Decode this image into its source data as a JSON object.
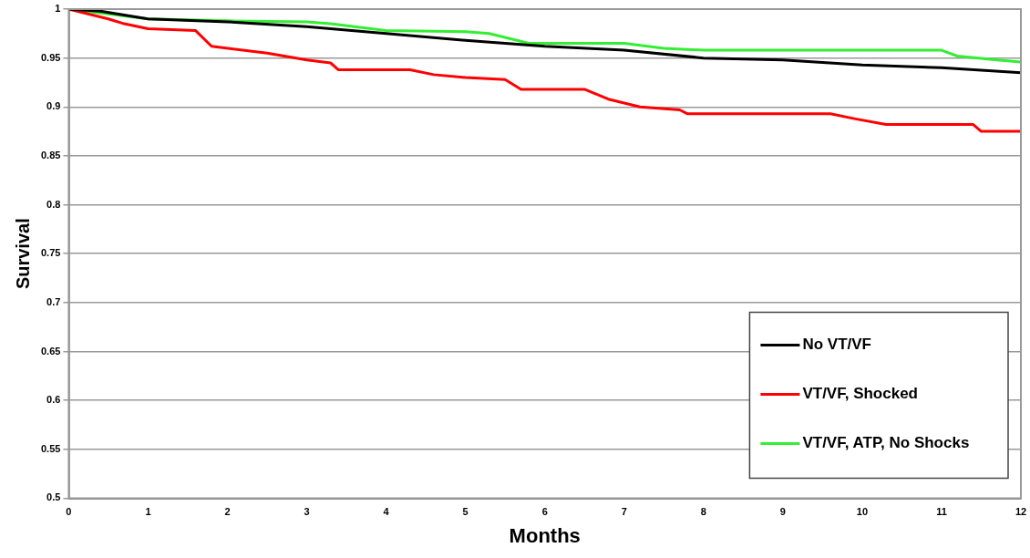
{
  "chart_data": {
    "type": "line",
    "xlabel": "Months",
    "ylabel": "Survival",
    "xlim": [
      0,
      12
    ],
    "xticks": [
      0,
      1,
      2,
      3,
      4,
      5,
      6,
      7,
      8,
      9,
      10,
      11,
      12
    ],
    "ylim": [
      0.5,
      1
    ],
    "yticks": [
      0.5,
      0.55,
      0.6,
      0.65,
      0.7,
      0.75,
      0.8,
      0.85,
      0.9,
      0.95,
      1
    ],
    "grid": "y",
    "legend": "bottom right",
    "marker": "none",
    "line_style": "solid",
    "series": [
      {
        "name": "No VT/VF",
        "color": "#000000",
        "x": [
          0,
          0.4,
          1,
          2,
          3,
          4,
          5,
          6,
          7,
          8,
          9,
          10,
          11,
          12
        ],
        "values": [
          1,
          0.998,
          0.99,
          0.987,
          0.982,
          0.975,
          0.968,
          0.962,
          0.958,
          0.95,
          0.948,
          0.943,
          0.94,
          0.935
        ]
      },
      {
        "name": "VT/VF, Shocked",
        "color": "#ff0000",
        "x": [
          0,
          0.5,
          0.7,
          1,
          1.6,
          1.8,
          2.5,
          3,
          3.3,
          3.4,
          4.3,
          4.6,
          5,
          5.5,
          5.7,
          6.5,
          6.8,
          7.2,
          7.7,
          7.8,
          9.6,
          9.9,
          10.3,
          11.4,
          11.5,
          12
        ],
        "values": [
          1,
          0.99,
          0.985,
          0.98,
          0.978,
          0.962,
          0.955,
          0.948,
          0.945,
          0.938,
          0.938,
          0.933,
          0.93,
          0.928,
          0.918,
          0.918,
          0.908,
          0.9,
          0.897,
          0.893,
          0.893,
          0.888,
          0.882,
          0.882,
          0.875,
          0.875
        ]
      },
      {
        "name": "VT/VF, ATP, No Shocks",
        "color": "#33ee33",
        "x": [
          0,
          0.5,
          1,
          2,
          3,
          3.3,
          4,
          5,
          5.3,
          5.8,
          7,
          7.5,
          8,
          10,
          11,
          11.2,
          11.7,
          12
        ],
        "values": [
          1,
          0.995,
          0.99,
          0.988,
          0.987,
          0.985,
          0.978,
          0.977,
          0.975,
          0.965,
          0.965,
          0.96,
          0.958,
          0.958,
          0.958,
          0.952,
          0.948,
          0.946
        ]
      }
    ]
  }
}
